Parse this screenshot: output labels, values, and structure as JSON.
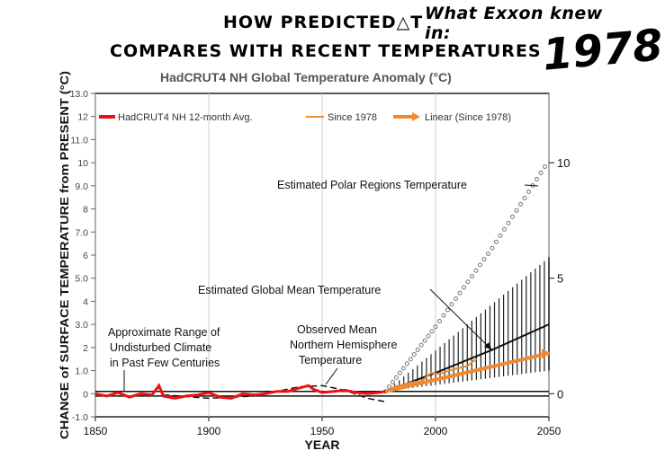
{
  "header": {
    "title_line1": "HOW PREDICTED△T",
    "title_line2": "COMPARES WITH RECENT TEMPERATURES",
    "note": "What Exxon knew in:",
    "year": "1978"
  },
  "chart_data": {
    "type": "line",
    "title": "HadCRUT4 NH Global Temperature Anomaly (°C)",
    "xlabel": "YEAR",
    "ylabel": "CHANGE of SURFACE TEMPERATURE from PRESENT (°C)",
    "xlim": [
      1850,
      2050
    ],
    "ylim": [
      -1.0,
      13.0
    ],
    "x_ticks": [
      "1850",
      "1900",
      "1950",
      "2000",
      "2050"
    ],
    "y_ticks_left": [
      "-1.0",
      "0",
      "1.0",
      "2",
      "3.0",
      "4",
      "5.0",
      "6",
      "7.0",
      "8",
      "9.0",
      "10",
      "11.0",
      "12",
      "13.0"
    ],
    "y_ticks_right": [
      "0",
      "5",
      "10"
    ],
    "legend": [
      {
        "label": "HadCRUT4 NH 12-month Avg.",
        "color": "#ee1111"
      },
      {
        "label": "Since 1978",
        "color": "#f08a30"
      },
      {
        "label": "Linear (Since 1978)",
        "color": "#f08a30"
      }
    ],
    "annotations": [
      {
        "text": "Estimated Polar Regions Temperature"
      },
      {
        "text": "Estimated Global Mean Temperature"
      },
      {
        "lines": [
          "Approximate Range of",
          "Undisturbed Climate",
          "in Past Few Centuries"
        ]
      },
      {
        "lines": [
          "Observed Mean",
          "Northern Hemisphere",
          "Temperature"
        ]
      }
    ],
    "series": [
      {
        "name": "HadCRUT4 NH 12-month Avg.",
        "color": "#ee1111",
        "x": [
          1850,
          1855,
          1860,
          1865,
          1870,
          1875,
          1878,
          1880,
          1885,
          1890,
          1895,
          1900,
          1905,
          1910,
          1915,
          1920,
          1925,
          1930,
          1935,
          1940,
          1944,
          1946,
          1950,
          1955,
          1960,
          1965,
          1970,
          1975,
          1978
        ],
        "y": [
          0.0,
          -0.1,
          0.05,
          -0.15,
          0.0,
          -0.05,
          0.35,
          -0.1,
          -0.2,
          -0.1,
          -0.05,
          0.05,
          -0.15,
          -0.2,
          0.0,
          -0.05,
          0.0,
          0.1,
          0.1,
          0.25,
          0.35,
          0.2,
          0.05,
          0.1,
          0.15,
          0.05,
          0.0,
          0.05,
          0.1
        ]
      },
      {
        "name": "Since 1978",
        "color": "#f08a30",
        "x": [
          1978,
          1982,
          1986,
          1990,
          1994,
          1998,
          2002,
          2006,
          2010,
          2014,
          2018
        ],
        "y": [
          0.1,
          0.3,
          0.4,
          0.5,
          0.55,
          0.9,
          0.85,
          1.0,
          1.1,
          1.2,
          1.5
        ]
      },
      {
        "name": "Linear (Since 1978)",
        "color": "#f08a30",
        "x": [
          1978,
          2050
        ],
        "y": [
          0.1,
          1.75
        ]
      },
      {
        "name": "Estimated Global Mean Temperature",
        "color": "#111111",
        "x": [
          1978,
          2000,
          2025,
          2050
        ],
        "y": [
          0.1,
          0.9,
          1.9,
          3.0
        ]
      },
      {
        "name": "Estimated Polar Regions Temperature",
        "color": "#777777",
        "x": [
          1978,
          2000,
          2025,
          2050
        ],
        "y": [
          0.1,
          2.9,
          6.3,
          10.1
        ]
      },
      {
        "name": "Approximate Range of Undisturbed Climate (upper)",
        "color": "#111111",
        "x": [
          1850,
          2050
        ],
        "y": [
          0.1,
          0.1
        ]
      },
      {
        "name": "Approximate Range of Undisturbed Climate (lower)",
        "color": "#111111",
        "x": [
          1850,
          2050
        ],
        "y": [
          -0.1,
          -0.1
        ]
      },
      {
        "name": "Observed Mean Northern Hemisphere Temperature",
        "color": "#111111",
        "x": [
          1880,
          1900,
          1920,
          1940,
          1950,
          1960,
          1970,
          1978
        ],
        "y": [
          -0.05,
          -0.2,
          -0.1,
          0.3,
          0.35,
          0.15,
          -0.2,
          -0.35
        ]
      }
    ],
    "uncertainty_band": {
      "x": [
        1978,
        2050
      ],
      "upper": [
        0.1,
        5.9
      ],
      "lower": [
        0.1,
        1.0
      ]
    }
  }
}
